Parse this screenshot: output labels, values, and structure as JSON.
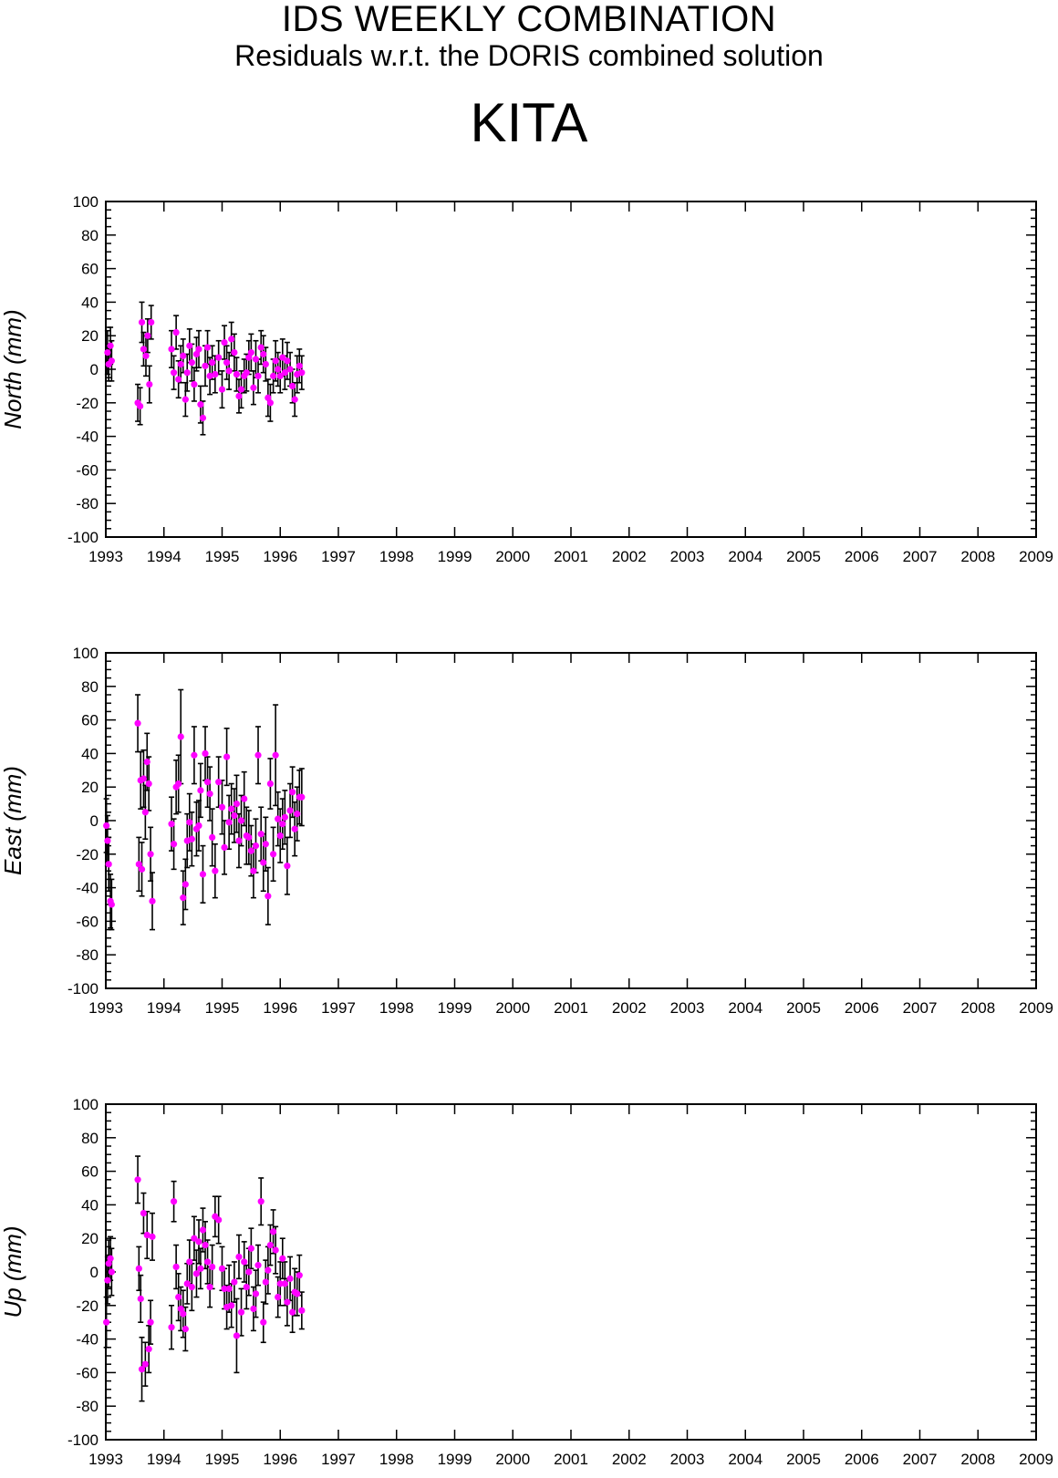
{
  "header": {
    "title": "IDS WEEKLY COMBINATION",
    "subtitle": "Residuals w.r.t. the DORIS combined solution",
    "station": "KITA"
  },
  "colors": {
    "point": "#ff00ff",
    "errorbar": "#000000",
    "axis": "#000000"
  },
  "chart_data": [
    {
      "type": "scatter",
      "ylabel": "North (mm)",
      "ylim": [
        -100,
        100
      ],
      "xlim": [
        1993,
        2009
      ],
      "yticks": [
        "100",
        "80",
        "60",
        "40",
        "20",
        "0",
        "-20",
        "-40",
        "-60",
        "-80",
        "-100"
      ],
      "xticks": [
        "1993",
        "1994",
        "1995",
        "1996",
        "1997",
        "1998",
        "1999",
        "2000",
        "2001",
        "2002",
        "2003",
        "2004",
        "2005",
        "2006",
        "2007",
        "2008",
        "2009"
      ],
      "grid": false,
      "error_bars": true,
      "x": [
        1993.03,
        1993.05,
        1993.08,
        1993.1,
        1993.55,
        1993.59,
        1993.62,
        1993.65,
        1993.69,
        1993.72,
        1993.75,
        1993.78,
        1994.13,
        1994.17,
        1994.21,
        1994.25,
        1994.29,
        1994.33,
        1994.37,
        1994.4,
        1994.44,
        1994.48,
        1994.52,
        1994.56,
        1994.6,
        1994.63,
        1994.67,
        1994.71,
        1994.75,
        1994.79,
        1994.83,
        1994.88,
        1994.94,
        1995.0,
        1995.04,
        1995.08,
        1995.12,
        1995.16,
        1995.21,
        1995.25,
        1995.29,
        1995.33,
        1995.38,
        1995.42,
        1995.46,
        1995.5,
        1995.54,
        1995.58,
        1995.62,
        1995.67,
        1995.71,
        1995.75,
        1995.79,
        1995.83,
        1995.88,
        1995.92,
        1995.96,
        1996.0,
        1996.04,
        1996.08,
        1996.12,
        1996.17,
        1996.21,
        1996.25,
        1996.29,
        1996.33,
        1996.37
      ],
      "y": [
        10,
        3,
        14,
        5,
        -20,
        -22,
        28,
        12,
        8,
        20,
        -9,
        28,
        12,
        -2,
        22,
        -6,
        3,
        8,
        -18,
        -2,
        14,
        4,
        -9,
        9,
        12,
        -21,
        -29,
        2,
        13,
        -4,
        4,
        -3,
        7,
        -12,
        16,
        4,
        -1,
        18,
        10,
        -3,
        -16,
        -12,
        -4,
        -2,
        7,
        10,
        -11,
        6,
        -4,
        13,
        9,
        3,
        -17,
        -20,
        -4,
        5,
        0,
        -4,
        7,
        -2,
        5,
        0,
        -10,
        -18,
        -3,
        2,
        -2
      ],
      "err": [
        13,
        10,
        11,
        12,
        11,
        11,
        12,
        10,
        12,
        10,
        11,
        10,
        11,
        10,
        10,
        11,
        11,
        10,
        10,
        11,
        10,
        11,
        10,
        10,
        11,
        11,
        10,
        12,
        10,
        11,
        10,
        11,
        10,
        11,
        10,
        10,
        11,
        10,
        11,
        10,
        10,
        11,
        10,
        11,
        10,
        11,
        10,
        11,
        10,
        10,
        11,
        10,
        11,
        11,
        10,
        12,
        10,
        10,
        11,
        10,
        11,
        10,
        10,
        10,
        11,
        10,
        10
      ]
    },
    {
      "type": "scatter",
      "ylabel": "East (mm)",
      "ylim": [
        -100,
        100
      ],
      "xlim": [
        1993,
        2009
      ],
      "yticks": [
        "100",
        "80",
        "60",
        "40",
        "20",
        "0",
        "-20",
        "-40",
        "-60",
        "-80",
        "-100"
      ],
      "xticks": [
        "1993",
        "1994",
        "1995",
        "1996",
        "1997",
        "1998",
        "1999",
        "2000",
        "2001",
        "2002",
        "2003",
        "2004",
        "2005",
        "2006",
        "2007",
        "2008",
        "2009"
      ],
      "grid": false,
      "error_bars": true,
      "x": [
        1993.01,
        1993.03,
        1993.05,
        1993.08,
        1993.1,
        1993.55,
        1993.57,
        1993.6,
        1993.62,
        1993.65,
        1993.68,
        1993.71,
        1993.74,
        1993.77,
        1993.8,
        1994.13,
        1994.17,
        1994.21,
        1994.25,
        1994.29,
        1994.33,
        1994.37,
        1994.4,
        1994.44,
        1994.48,
        1994.52,
        1994.56,
        1994.6,
        1994.63,
        1994.67,
        1994.71,
        1994.75,
        1994.79,
        1994.83,
        1994.88,
        1994.94,
        1995.0,
        1995.04,
        1995.08,
        1995.12,
        1995.16,
        1995.21,
        1995.25,
        1995.29,
        1995.33,
        1995.38,
        1995.42,
        1995.46,
        1995.5,
        1995.54,
        1995.58,
        1995.62,
        1995.67,
        1995.71,
        1995.75,
        1995.79,
        1995.83,
        1995.88,
        1995.92,
        1995.96,
        1996.0,
        1996.04,
        1996.08,
        1996.12,
        1996.17,
        1996.21,
        1996.25,
        1996.29,
        1996.33,
        1996.37
      ],
      "y": [
        -3,
        -12,
        -26,
        -48,
        -50,
        58,
        -26,
        24,
        -29,
        25,
        5,
        35,
        22,
        -20,
        -48,
        -2,
        -14,
        20,
        22,
        50,
        -46,
        -38,
        -12,
        -1,
        -11,
        39,
        -5,
        -3,
        18,
        -32,
        40,
        23,
        16,
        -10,
        -30,
        23,
        8,
        -16,
        38,
        -1,
        7,
        3,
        10,
        -12,
        0,
        13,
        -9,
        -10,
        -18,
        -30,
        -15,
        39,
        -8,
        -25,
        -14,
        -45,
        22,
        -20,
        39,
        1,
        -9,
        -2,
        2,
        -27,
        6,
        17,
        -5,
        4,
        14,
        14
      ],
      "err": [
        16,
        15,
        16,
        16,
        15,
        17,
        16,
        17,
        16,
        17,
        16,
        17,
        16,
        16,
        17,
        16,
        15,
        16,
        17,
        28,
        16,
        15,
        16,
        17,
        16,
        17,
        16,
        15,
        16,
        17,
        16,
        15,
        16,
        17,
        16,
        15,
        16,
        16,
        17,
        16,
        15,
        16,
        17,
        16,
        15,
        16,
        17,
        16,
        15,
        16,
        16,
        17,
        16,
        17,
        16,
        17,
        15,
        16,
        30,
        16,
        16,
        15,
        16,
        17,
        16,
        15,
        16,
        16,
        16,
        17
      ]
    },
    {
      "type": "scatter",
      "ylabel": "Up (mm)",
      "ylim": [
        -100,
        100
      ],
      "xlim": [
        1993,
        2009
      ],
      "yticks": [
        "100",
        "80",
        "60",
        "40",
        "20",
        "0",
        "-20",
        "-40",
        "-60",
        "-80",
        "-100"
      ],
      "xticks": [
        "1993",
        "1994",
        "1995",
        "1996",
        "1997",
        "1998",
        "1999",
        "2000",
        "2001",
        "2002",
        "2003",
        "2004",
        "2005",
        "2006",
        "2007",
        "2008",
        "2009"
      ],
      "grid": false,
      "error_bars": true,
      "x": [
        1993.01,
        1993.03,
        1993.05,
        1993.08,
        1993.1,
        1993.55,
        1993.57,
        1993.6,
        1993.62,
        1993.65,
        1993.68,
        1993.71,
        1993.74,
        1993.77,
        1993.8,
        1994.13,
        1994.17,
        1994.21,
        1994.25,
        1994.29,
        1994.33,
        1994.37,
        1994.4,
        1994.44,
        1994.48,
        1994.52,
        1994.56,
        1994.6,
        1994.63,
        1994.67,
        1994.71,
        1994.75,
        1994.79,
        1994.83,
        1994.88,
        1994.94,
        1995.0,
        1995.04,
        1995.08,
        1995.12,
        1995.16,
        1995.21,
        1995.25,
        1995.29,
        1995.33,
        1995.38,
        1995.42,
        1995.46,
        1995.5,
        1995.54,
        1995.58,
        1995.62,
        1995.67,
        1995.71,
        1995.75,
        1995.79,
        1995.83,
        1995.88,
        1995.92,
        1995.96,
        1996.0,
        1996.04,
        1996.08,
        1996.12,
        1996.17,
        1996.21,
        1996.25,
        1996.29,
        1996.33,
        1996.37
      ],
      "y": [
        -30,
        -5,
        5,
        8,
        0,
        55,
        2,
        -16,
        -58,
        35,
        -55,
        22,
        -46,
        -30,
        21,
        -33,
        42,
        3,
        -15,
        -22,
        -25,
        -34,
        -7,
        6,
        -9,
        20,
        -1,
        18,
        2,
        25,
        16,
        6,
        -9,
        3,
        33,
        31,
        2,
        -10,
        -21,
        -10,
        -20,
        -6,
        -38,
        9,
        -24,
        6,
        -9,
        0,
        14,
        -22,
        -13,
        4,
        42,
        -30,
        -6,
        1,
        16,
        24,
        13,
        -15,
        -7,
        8,
        -7,
        -18,
        -4,
        -24,
        -12,
        -13,
        -2,
        -23
      ],
      "err": [
        15,
        14,
        14,
        13,
        14,
        14,
        13,
        14,
        19,
        12,
        13,
        14,
        14,
        13,
        14,
        13,
        12,
        13,
        14,
        13,
        14,
        13,
        12,
        13,
        14,
        13,
        14,
        13,
        12,
        13,
        14,
        13,
        12,
        13,
        12,
        14,
        13,
        12,
        13,
        14,
        13,
        12,
        22,
        13,
        14,
        12,
        13,
        14,
        12,
        13,
        14,
        12,
        14,
        12,
        13,
        14,
        12,
        13,
        14,
        12,
        13,
        12,
        13,
        14,
        13,
        12,
        14,
        13,
        12,
        11
      ]
    }
  ]
}
